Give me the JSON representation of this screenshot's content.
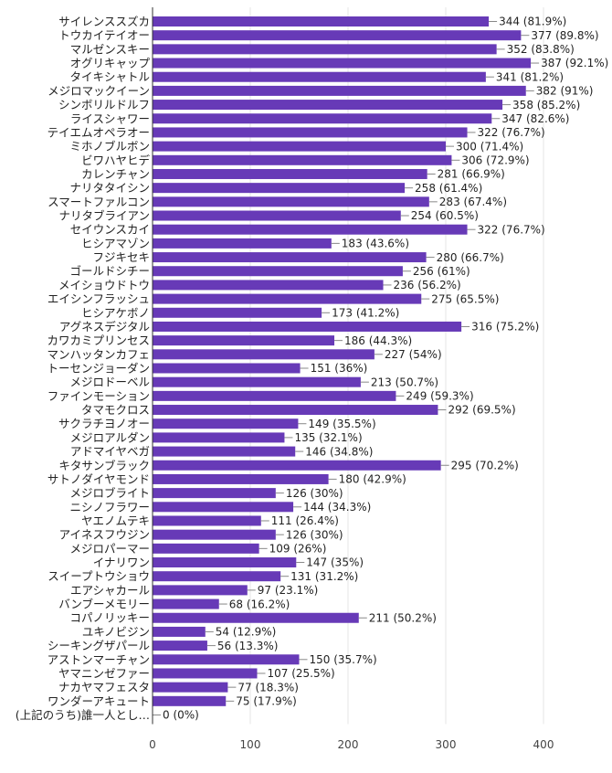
{
  "chart_data": {
    "type": "bar",
    "orientation": "horizontal",
    "categories": [
      "サイレンススズカ",
      "トウカイテイオー",
      "マルゼンスキー",
      "オグリキャップ",
      "タイキシャトル",
      "メジロマックイーン",
      "シンボリルドルフ",
      "ライスシャワー",
      "テイエムオペラオー",
      "ミホノブルボン",
      "ビワハヤヒデ",
      "カレンチャン",
      "ナリタタイシン",
      "スマートファルコン",
      "ナリタブライアン",
      "セイウンスカイ",
      "ヒシアマゾン",
      "フジキセキ",
      "ゴールドシチー",
      "メイショウドトウ",
      "エイシンフラッシュ",
      "ヒシアケボノ",
      "アグネスデジタル",
      "カワカミプリンセス",
      "マンハッタンカフェ",
      "トーセンジョーダン",
      "メジロドーベル",
      "ファインモーション",
      "タマモクロス",
      "サクラチヨノオー",
      "メジロアルダン",
      "アドマイヤベガ",
      "キタサンブラック",
      "サトノダイヤモンド",
      "メジロブライト",
      "ニシノフラワー",
      "ヤエノムテキ",
      "アイネスフウジン",
      "メジロパーマー",
      "イナリワン",
      "スイープトウショウ",
      "エアシャカール",
      "バンブーメモリー",
      "コパノリッキー",
      "ユキノビジン",
      "シーキングザパール",
      "アストンマーチャン",
      "ヤマニンゼファー",
      "ナカヤマフェスタ",
      "ワンダーアキュート",
      "(上記のうち)誰一人とし…"
    ],
    "values": [
      344,
      377,
      352,
      387,
      341,
      382,
      358,
      347,
      322,
      300,
      306,
      281,
      258,
      283,
      254,
      322,
      183,
      280,
      256,
      236,
      275,
      173,
      316,
      186,
      227,
      151,
      213,
      249,
      292,
      149,
      135,
      146,
      295,
      180,
      126,
      144,
      111,
      126,
      109,
      147,
      131,
      97,
      68,
      211,
      54,
      56,
      150,
      107,
      77,
      75,
      0
    ],
    "data_labels": [
      "344 (81.9%)",
      "377 (89.8%)",
      "352 (83.8%)",
      "387 (92.1%)",
      "341 (81.2%)",
      "382 (91%)",
      "358 (85.2%)",
      "347 (82.6%)",
      "322 (76.7%)",
      "300 (71.4%)",
      "306 (72.9%)",
      "281 (66.9%)",
      "258 (61.4%)",
      "283 (67.4%)",
      "254 (60.5%)",
      "322 (76.7%)",
      "183 (43.6%)",
      "280 (66.7%)",
      "256 (61%)",
      "236 (56.2%)",
      "275 (65.5%)",
      "173 (41.2%)",
      "316 (75.2%)",
      "186 (44.3%)",
      "227 (54%)",
      "151 (36%)",
      "213 (50.7%)",
      "249 (59.3%)",
      "292 (69.5%)",
      "149 (35.5%)",
      "135 (32.1%)",
      "146 (34.8%)",
      "295 (70.2%)",
      "180 (42.9%)",
      "126 (30%)",
      "144 (34.3%)",
      "111 (26.4%)",
      "126 (30%)",
      "109 (26%)",
      "147 (35%)",
      "131 (31.2%)",
      "97 (23.1%)",
      "68 (16.2%)",
      "211 (50.2%)",
      "54 (12.9%)",
      "56 (13.3%)",
      "150 (35.7%)",
      "107 (25.5%)",
      "77 (18.3%)",
      "75 (17.9%)",
      "0 (0%)"
    ],
    "x_ticks": [
      0,
      100,
      200,
      300,
      400
    ],
    "x_tick_labels": [
      "0",
      "100",
      "200",
      "300",
      "400"
    ],
    "xlim": [
      0,
      400
    ],
    "grid": true,
    "legend": "none",
    "title": "",
    "xlabel": "",
    "ylabel": "",
    "bar_color": "#673ab7"
  }
}
